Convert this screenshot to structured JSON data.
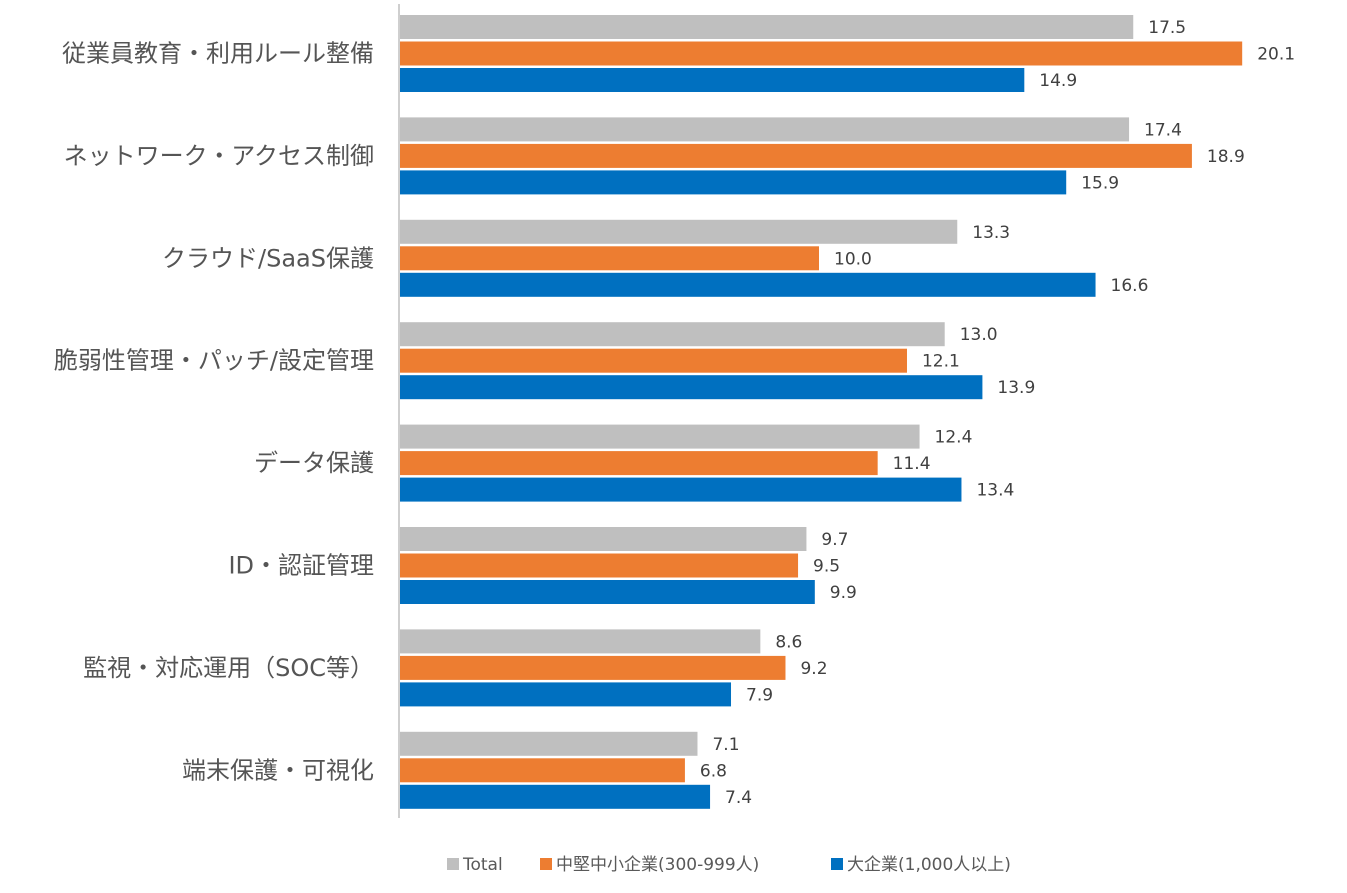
{
  "chart_data": {
    "type": "bar",
    "orientation": "horizontal",
    "categories": [
      "従業員教育・利用ルール整備",
      "ネットワーク・アクセス制御",
      "クラウド/SaaS保護",
      "脆弱性管理・パッチ/設定管理",
      "データ保護",
      "ID・認証管理",
      "監視・対応運用（SOC等）",
      "端末保護・可視化"
    ],
    "series": [
      {
        "name": "Total",
        "color": "#bfbfbf",
        "values": [
          17.5,
          17.4,
          13.3,
          13.0,
          12.4,
          9.7,
          8.6,
          7.1
        ]
      },
      {
        "name": "中堅中小企業(300-999人)",
        "color": "#ed7d31",
        "values": [
          20.1,
          18.9,
          10.0,
          12.1,
          11.4,
          9.5,
          9.2,
          6.8
        ]
      },
      {
        "name": "大企業(1,000人以上)",
        "color": "#0070c0",
        "values": [
          14.9,
          15.9,
          16.6,
          13.9,
          13.4,
          9.9,
          7.9,
          7.4
        ]
      }
    ],
    "xlim": [
      0,
      22
    ],
    "grid": false,
    "legend_position": "bottom",
    "value_labels": true
  }
}
